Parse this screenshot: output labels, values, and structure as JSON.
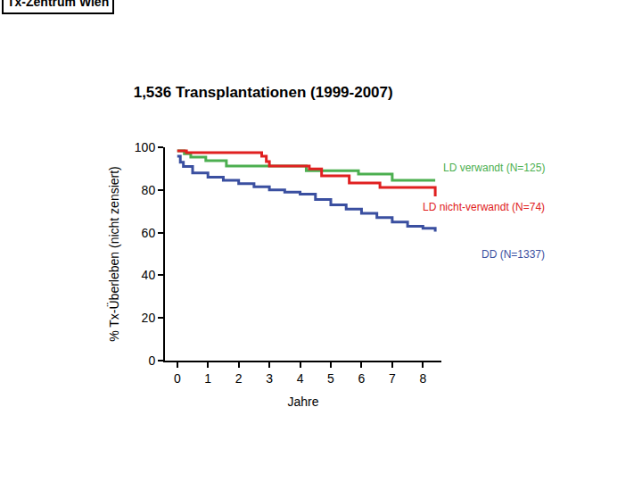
{
  "chart_data": {
    "type": "line",
    "title": "1,536 Transplantationen (1999-2007)",
    "annotations": [
      "Tx-Zentrum Wien"
    ],
    "x_label": "Jahre",
    "y_label": "% Tx-Überleben (nicht zensiert)",
    "xlim": [
      -0.4,
      8.6
    ],
    "xticks": [
      0,
      1,
      2,
      3,
      4,
      5,
      6,
      7,
      8
    ],
    "ylim": [
      0,
      100
    ],
    "yticks": [
      0,
      20,
      40,
      60,
      80,
      100
    ],
    "grid": false,
    "line_style": "step",
    "series": [
      {
        "name": "LD verwandt (N=125)",
        "color": "#4caf50",
        "x": [
          0,
          0.23,
          0.44,
          0.93,
          1.6,
          4.2,
          5.9,
          7.0,
          8.4
        ],
        "values": [
          98.3,
          97.0,
          95.4,
          93.7,
          91.2,
          89.0,
          87.4,
          84.5,
          84.5
        ]
      },
      {
        "name": "LD nicht-verwandt (N=74)",
        "color": "#e02020",
        "x": [
          0,
          0.3,
          2.75,
          2.9,
          3.0,
          4.3,
          4.7,
          5.6,
          6.6,
          8.35,
          8.4
        ],
        "values": [
          98.3,
          97.5,
          95.8,
          93.3,
          91.2,
          89.9,
          86.6,
          83.3,
          81.2,
          81.2,
          77.0
        ]
      },
      {
        "name": "DD (N=1337)",
        "color": "#3a4fa0",
        "x": [
          0,
          0.1,
          0.2,
          0.5,
          1.0,
          1.5,
          2.0,
          2.5,
          3.0,
          3.5,
          4.0,
          4.5,
          5.0,
          5.5,
          6.0,
          6.5,
          7.0,
          7.5,
          8.0,
          8.4
        ],
        "values": [
          95.8,
          93,
          91,
          88,
          86,
          84.5,
          83,
          81.5,
          80,
          79,
          78,
          75.5,
          73,
          71,
          69,
          67,
          65,
          63,
          62,
          60.5
        ]
      }
    ]
  }
}
